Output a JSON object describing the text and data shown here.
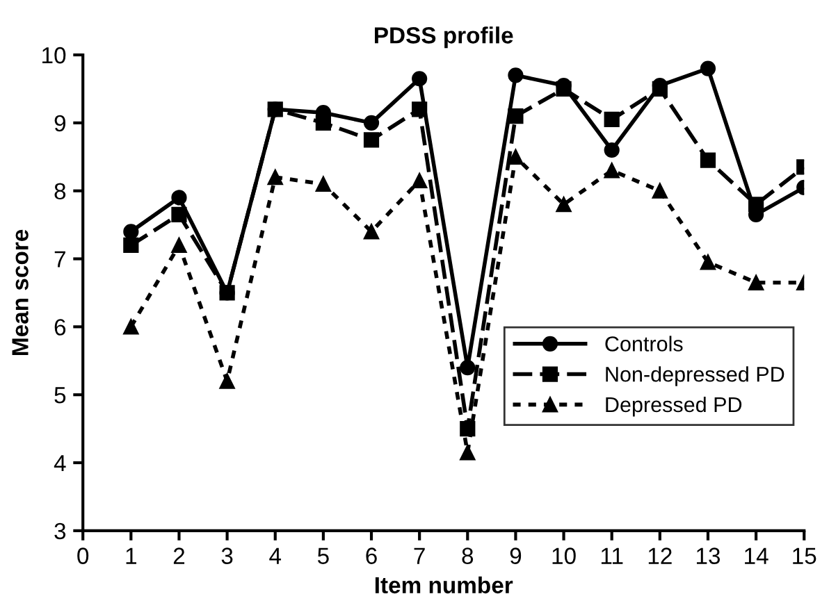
{
  "chart_data": {
    "type": "line",
    "title": "PDSS profile",
    "xlabel": "Item number",
    "ylabel": "Mean score",
    "x": [
      1,
      2,
      3,
      4,
      5,
      6,
      7,
      8,
      9,
      10,
      11,
      12,
      13,
      14,
      15
    ],
    "series": [
      {
        "name": "Controls",
        "color": "#000000",
        "marker": "circle",
        "line_style": "solid",
        "values": [
          7.4,
          7.9,
          6.5,
          9.2,
          9.15,
          9.0,
          9.65,
          5.4,
          9.7,
          9.55,
          8.6,
          9.55,
          9.8,
          7.65,
          8.05
        ]
      },
      {
        "name": "Non-depressed PD",
        "color": "#000000",
        "marker": "square",
        "line_style": "dashed",
        "values": [
          7.2,
          7.65,
          6.5,
          9.2,
          9.0,
          8.75,
          9.2,
          4.5,
          9.1,
          9.5,
          9.05,
          9.5,
          8.45,
          7.8,
          8.35
        ]
      },
      {
        "name": "Depressed PD",
        "color": "#000000",
        "marker": "triangle",
        "line_style": "dotted",
        "values": [
          6.0,
          7.2,
          5.2,
          8.2,
          8.1,
          7.4,
          8.15,
          4.15,
          8.5,
          7.8,
          8.3,
          8.0,
          6.95,
          6.65,
          6.65
        ]
      }
    ],
    "xlim": [
      0,
      15
    ],
    "xticks": [
      0,
      1,
      2,
      3,
      4,
      5,
      6,
      7,
      8,
      9,
      10,
      11,
      12,
      13,
      14,
      15
    ],
    "ylim": [
      3,
      10
    ],
    "yticks": [
      3,
      4,
      5,
      6,
      7,
      8,
      9,
      10
    ],
    "grid": false,
    "legend": "bottom right"
  }
}
